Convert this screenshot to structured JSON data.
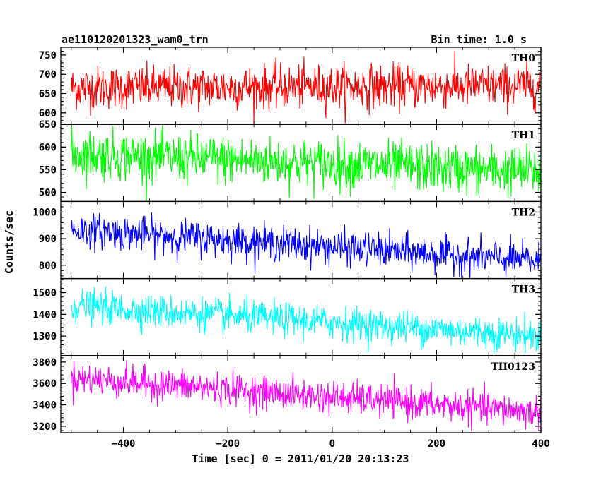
{
  "header": {
    "title": "ae110120201323_wam0_trn",
    "bin_time": "Bin time: 1.0 s"
  },
  "chart_data": {
    "type": "line",
    "title": "ae110120201323_wam0_trn",
    "xlabel": "Time [sec] 0 = 2011/01/20 20:13:23",
    "ylabel": "Counts/sec",
    "xlim": [
      -520,
      400
    ],
    "x_range": [
      -500,
      400
    ],
    "x_step": 1.0,
    "x_ticks": [
      -400,
      -200,
      0,
      200,
      400
    ],
    "x_tick_labels": [
      "−400",
      "−200",
      "0",
      "200",
      "400"
    ],
    "series": [
      {
        "name": "TH0",
        "color": "#ff0000",
        "ylim": [
          570,
          770
        ],
        "y_ticks": [
          600,
          650,
          700,
          750
        ],
        "mean_start": 665,
        "mean_end": 670,
        "noise_sd": 28
      },
      {
        "name": "TH1",
        "color": "#00ff00",
        "ylim": [
          480,
          650
        ],
        "y_ticks": [
          500,
          550,
          600,
          650
        ],
        "mean_start": 585,
        "mean_end": 545,
        "noise_sd": 27
      },
      {
        "name": "TH2",
        "color": "#0000ff",
        "ylim": [
          750,
          1040
        ],
        "y_ticks": [
          800,
          900,
          1000
        ],
        "mean_start": 935,
        "mean_end": 815,
        "noise_sd": 32
      },
      {
        "name": "TH3",
        "color": "#00ffff",
        "ylim": [
          1210,
          1565
        ],
        "y_ticks": [
          1300,
          1400,
          1500
        ],
        "mean_start": 1440,
        "mean_end": 1300,
        "noise_sd": 38
      },
      {
        "name": "TH0123",
        "color": "#ff00ff",
        "ylim": [
          3140,
          3860
        ],
        "y_ticks": [
          3200,
          3400,
          3600,
          3800
        ],
        "mean_start": 3650,
        "mean_end": 3330,
        "noise_sd": 75
      }
    ]
  }
}
